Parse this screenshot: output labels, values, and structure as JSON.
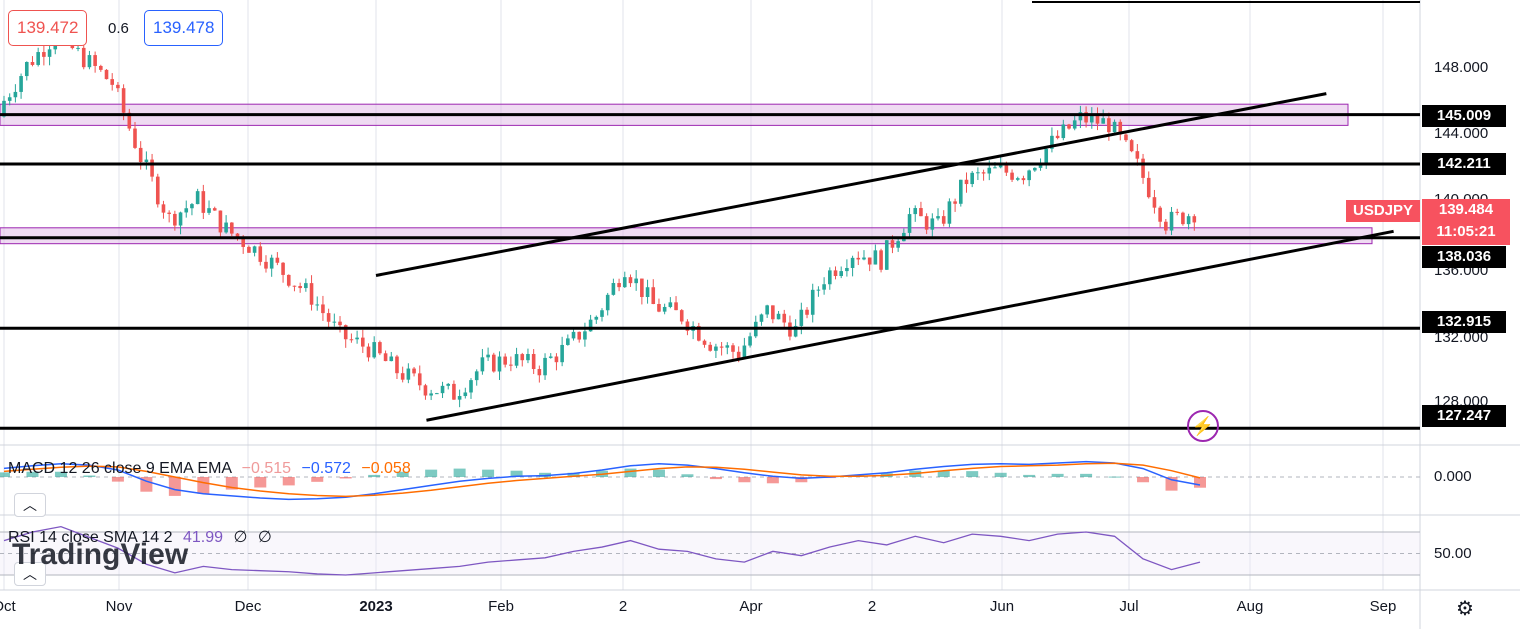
{
  "colors": {
    "up": "#26a69a",
    "down": "#ef5350",
    "zone_fill": "#e1bee7",
    "zone_stroke": "#9c27b0",
    "macd": "#2962ff",
    "signal": "#ff6d00",
    "rsi": "#7e57c2",
    "line": "#000000",
    "grid": "#e0e3eb"
  },
  "header": {
    "bid": "139.472",
    "spread": "0.6",
    "ask": "139.478"
  },
  "symbol": {
    "ticker": "USDJPY",
    "last_price": "139.484",
    "countdown": "11:05:21"
  },
  "levels": {
    "l1": "145.009",
    "l2": "142.211",
    "l3": "138.036",
    "l4": "132.915",
    "l5": "127.247"
  },
  "price_axis": {
    "t1": "148.000",
    "t2": "144.000",
    "t3": "140.000",
    "t4": "136.000",
    "t5": "132.000",
    "t6": "128.000"
  },
  "months": {
    "m0": "Oct",
    "m1": "Nov",
    "m2": "Dec",
    "m3": "2023",
    "m4": "Feb",
    "m5": "2",
    "m6": "Apr",
    "m7": "2",
    "m8": "Jun",
    "m9": "Jul",
    "m10": "Aug",
    "m11": "Sep"
  },
  "macd": {
    "label": "MACD 12 26 close 9 EMA EMA",
    "hist": "−0.515",
    "macd": "−0.572",
    "signal": "−0.058",
    "axis": "0.000"
  },
  "rsi": {
    "label": "RSI 14 close SMA 14 2",
    "value": "41.99",
    "v2": "∅",
    "v3": "∅",
    "axis": "50.00"
  },
  "brand": {
    "logo": "TradingView"
  },
  "icons": {
    "collapse": "chevron-up-icon",
    "settings": "gear-icon",
    "alert": "lightning-icon"
  },
  "chart_data": {
    "type": "candlestick",
    "title": "USDJPY",
    "ylim": [
      126.3,
      151.5
    ],
    "horizontal_levels": [
      145.009,
      142.211,
      138.036,
      132.915,
      127.247
    ],
    "zones": [
      {
        "low": 144.4,
        "high": 145.6
      },
      {
        "low": 137.7,
        "high": 138.6
      }
    ],
    "channel": {
      "upper": [
        {
          "x": "2023-01-01",
          "y": 135.9
        },
        {
          "x": "2023-08-15",
          "y": 146.2
        }
      ],
      "lower": [
        {
          "x": "2023-01-13",
          "y": 127.7
        },
        {
          "x": "2023-08-31",
          "y": 138.4
        }
      ]
    },
    "weekly_closes": [
      145.3,
      147.8,
      149.5,
      148.2,
      146.8,
      142.6,
      139.1,
      140.2,
      138.5,
      137.4,
      136.1,
      134.7,
      132.5,
      131.8,
      130.5,
      129.6,
      129.2,
      130.8,
      131.2,
      130.7,
      131.9,
      133.6,
      136.4,
      134.2,
      133.6,
      132.1,
      131.5,
      133.9,
      132.8,
      135.8,
      137.2,
      136.8,
      139.3,
      138.7,
      141.3,
      141.8,
      141.7,
      143.4,
      144.8,
      144.5,
      142.1,
      138.9,
      139.5
    ],
    "macd_series": [
      0.62,
      0.8,
      0.95,
      0.85,
      0.5,
      -0.3,
      -0.9,
      -1.2,
      -1.35,
      -1.5,
      -1.6,
      -1.55,
      -1.45,
      -1.2,
      -0.9,
      -0.6,
      -0.3,
      -0.1,
      0.05,
      0.1,
      0.25,
      0.5,
      0.8,
      0.95,
      0.85,
      0.6,
      0.3,
      0.05,
      -0.1,
      0.0,
      0.15,
      0.3,
      0.55,
      0.75,
      0.9,
      0.95,
      0.9,
      1.0,
      1.1,
      1.0,
      0.6,
      -0.2,
      -0.57
    ],
    "signal_series": [
      0.4,
      0.55,
      0.7,
      0.78,
      0.72,
      0.4,
      0.0,
      -0.4,
      -0.75,
      -1.0,
      -1.2,
      -1.32,
      -1.38,
      -1.3,
      -1.15,
      -0.95,
      -0.7,
      -0.45,
      -0.25,
      -0.1,
      0.05,
      0.2,
      0.4,
      0.6,
      0.72,
      0.7,
      0.55,
      0.35,
      0.15,
      0.05,
      0.05,
      0.12,
      0.25,
      0.45,
      0.62,
      0.75,
      0.8,
      0.85,
      0.95,
      0.98,
      0.85,
      0.45,
      -0.06
    ],
    "rsi_series": [
      62,
      70,
      75,
      65,
      55,
      40,
      32,
      38,
      35,
      34,
      33,
      31,
      30,
      32,
      34,
      36,
      38,
      42,
      44,
      46,
      52,
      56,
      62,
      54,
      52,
      45,
      42,
      52,
      48,
      56,
      62,
      58,
      66,
      60,
      68,
      66,
      62,
      68,
      70,
      66,
      45,
      35,
      42
    ]
  }
}
